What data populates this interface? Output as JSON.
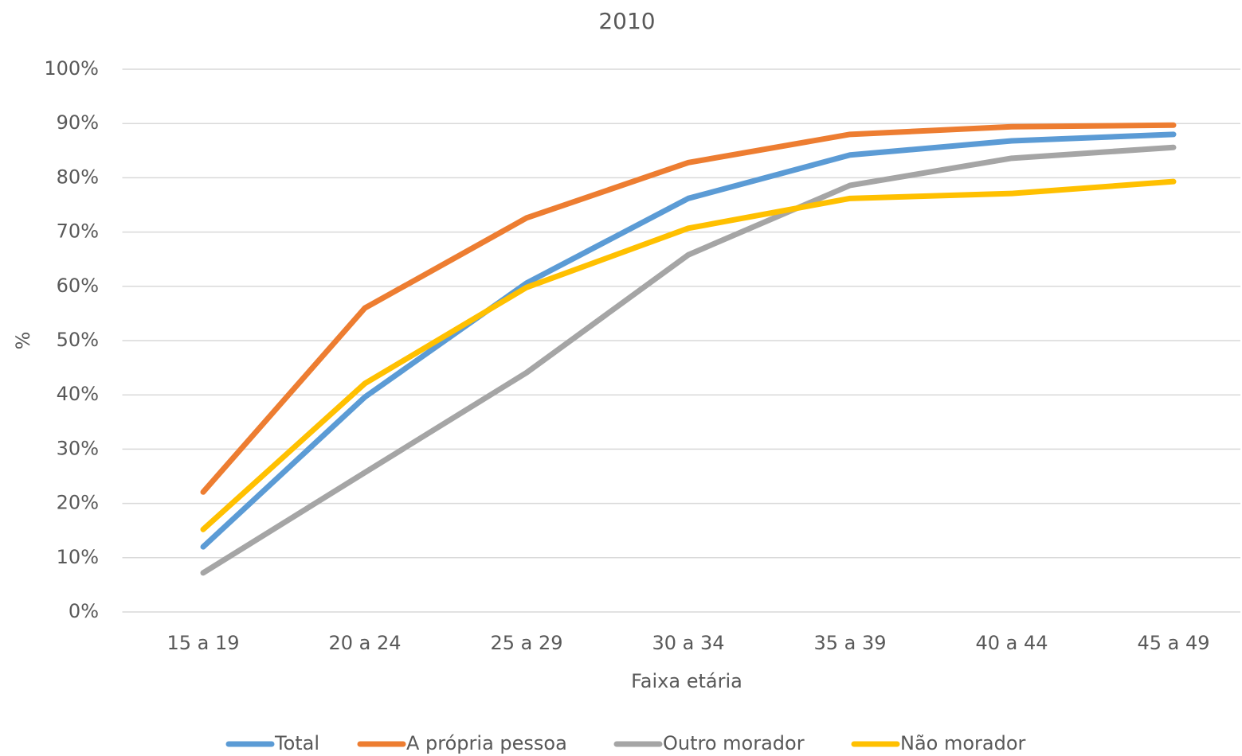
{
  "chart_data": {
    "type": "line",
    "title": "2010",
    "x_label": "Faixa etária",
    "y_label": "%",
    "categories": [
      "15 a 19",
      "20 a 24",
      "25 a 29",
      "30 a 34",
      "35 a 39",
      "40 a 44",
      "45 a 49"
    ],
    "series": [
      {
        "name": "Total",
        "color": "#5b9bd5",
        "values": [
          12.0,
          39.6,
          60.6,
          76.2,
          84.2,
          86.8,
          88.0
        ]
      },
      {
        "name": "A própria pessoa",
        "color": "#ed7d31",
        "values": [
          22.1,
          56.0,
          72.6,
          82.8,
          88.0,
          89.4,
          89.7
        ]
      },
      {
        "name": "Outro morador",
        "color": "#a5a5a5",
        "values": [
          7.2,
          25.7,
          44.1,
          65.8,
          78.6,
          83.6,
          85.6
        ]
      },
      {
        "name": "Não morador",
        "color": "#ffc000",
        "values": [
          15.2,
          42.1,
          59.8,
          70.7,
          76.2,
          77.1,
          79.3
        ]
      }
    ],
    "ylim": [
      0,
      100
    ],
    "yticks": [
      {
        "value": 0,
        "label": "0%"
      },
      {
        "value": 10,
        "label": "10%"
      },
      {
        "value": 20,
        "label": "20%"
      },
      {
        "value": 30,
        "label": "30%"
      },
      {
        "value": 40,
        "label": "40%"
      },
      {
        "value": 50,
        "label": "50%"
      },
      {
        "value": 60,
        "label": "60%"
      },
      {
        "value": 70,
        "label": "70%"
      },
      {
        "value": 80,
        "label": "80%"
      },
      {
        "value": 90,
        "label": "90%"
      },
      {
        "value": 100,
        "label": "100%"
      }
    ],
    "grid": true,
    "legend": "bottom"
  }
}
